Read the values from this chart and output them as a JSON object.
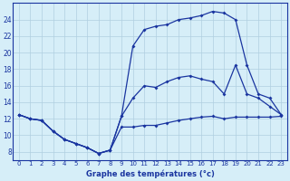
{
  "title": "Graphe des températures (°c)",
  "background_color": "#d6eef8",
  "grid_color": "#b0cfe0",
  "line_color": "#1a35a0",
  "xlim": [
    -0.5,
    23.5
  ],
  "ylim": [
    7.0,
    26.0
  ],
  "xticks": [
    0,
    1,
    2,
    3,
    4,
    5,
    6,
    7,
    8,
    9,
    10,
    11,
    12,
    13,
    14,
    15,
    16,
    17,
    18,
    19,
    20,
    21,
    22,
    23
  ],
  "yticks": [
    8,
    10,
    12,
    14,
    16,
    18,
    20,
    22,
    24
  ],
  "line_top_x": [
    0,
    1,
    2,
    3,
    4,
    5,
    6,
    7,
    8,
    9,
    10,
    11,
    12,
    13,
    14,
    15,
    16,
    17,
    18,
    19,
    20,
    21,
    22,
    23
  ],
  "line_top_y": [
    12.5,
    12.0,
    11.8,
    10.5,
    9.5,
    9.0,
    8.5,
    7.8,
    8.2,
    12.3,
    20.8,
    22.8,
    23.2,
    23.4,
    24.0,
    24.2,
    24.5,
    25.0,
    24.8,
    24.0,
    18.5,
    15.0,
    14.5,
    12.5
  ],
  "line_mid_x": [
    0,
    1,
    2,
    3,
    4,
    5,
    6,
    7,
    8,
    9,
    10,
    11,
    12,
    13,
    14,
    15,
    16,
    17,
    18,
    19,
    20,
    21,
    22,
    23
  ],
  "line_mid_y": [
    12.5,
    12.0,
    11.8,
    10.5,
    9.5,
    9.0,
    8.5,
    7.8,
    8.2,
    12.3,
    14.5,
    16.0,
    15.8,
    16.5,
    17.0,
    17.2,
    16.8,
    16.5,
    15.0,
    18.5,
    15.0,
    14.5,
    13.5,
    12.5
  ],
  "line_bot_x": [
    0,
    1,
    2,
    3,
    4,
    5,
    6,
    7,
    8,
    9,
    10,
    11,
    12,
    13,
    14,
    15,
    16,
    17,
    18,
    19,
    20,
    21,
    22,
    23
  ],
  "line_bot_y": [
    12.5,
    12.0,
    11.8,
    10.5,
    9.5,
    9.0,
    8.5,
    7.8,
    8.2,
    11.0,
    11.0,
    11.2,
    11.2,
    11.5,
    11.8,
    12.0,
    12.2,
    12.3,
    12.0,
    12.2,
    12.2,
    12.2,
    12.2,
    12.3
  ]
}
